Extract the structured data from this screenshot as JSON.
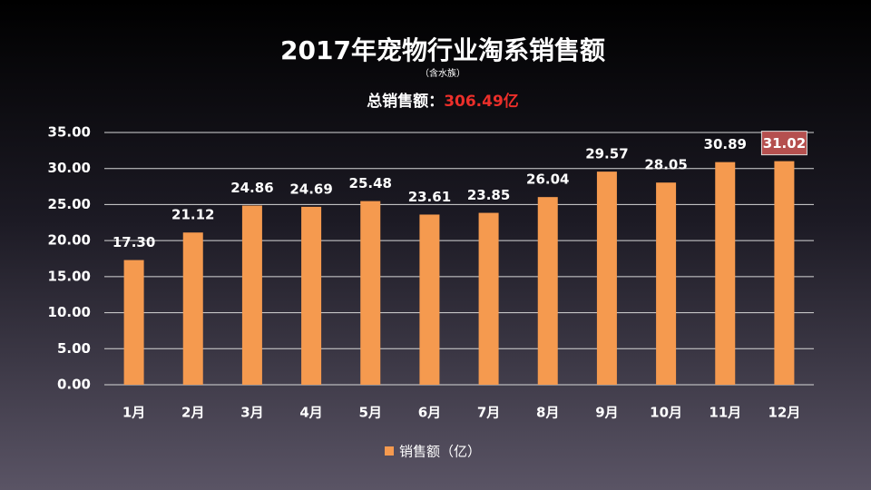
{
  "chart_data": {
    "type": "bar",
    "title": "2017年宠物行业淘系销售额",
    "subtitle": "（含水族）",
    "total_label": "总销售额：",
    "total_value": "306.49亿",
    "categories": [
      "1月",
      "2月",
      "3月",
      "4月",
      "5月",
      "6月",
      "7月",
      "8月",
      "9月",
      "10月",
      "11月",
      "12月"
    ],
    "series": [
      {
        "name": "销售额（亿）",
        "color": "#f59a4f",
        "values": [
          17.3,
          21.12,
          24.86,
          24.69,
          25.48,
          23.61,
          23.85,
          26.04,
          29.57,
          28.05,
          30.89,
          31.02
        ],
        "value_labels": [
          "17.30",
          "21.12",
          "24.86",
          "24.69",
          "25.48",
          "23.61",
          "23.85",
          "26.04",
          "29.57",
          "28.05",
          "30.89",
          "31.02"
        ]
      }
    ],
    "highlight": {
      "index": 11,
      "color": "#b5504f"
    },
    "ylim": [
      0,
      35
    ],
    "yticks": [
      {
        "value": 0,
        "label": "0.00"
      },
      {
        "value": 5,
        "label": "5.00"
      },
      {
        "value": 10,
        "label": "10.00"
      },
      {
        "value": 15,
        "label": "15.00"
      },
      {
        "value": 20,
        "label": "20.00"
      },
      {
        "value": 25,
        "label": "25.00"
      },
      {
        "value": 30,
        "label": "30.00"
      },
      {
        "value": 35,
        "label": "35.00"
      }
    ],
    "grid": true,
    "legend": "bottom"
  }
}
